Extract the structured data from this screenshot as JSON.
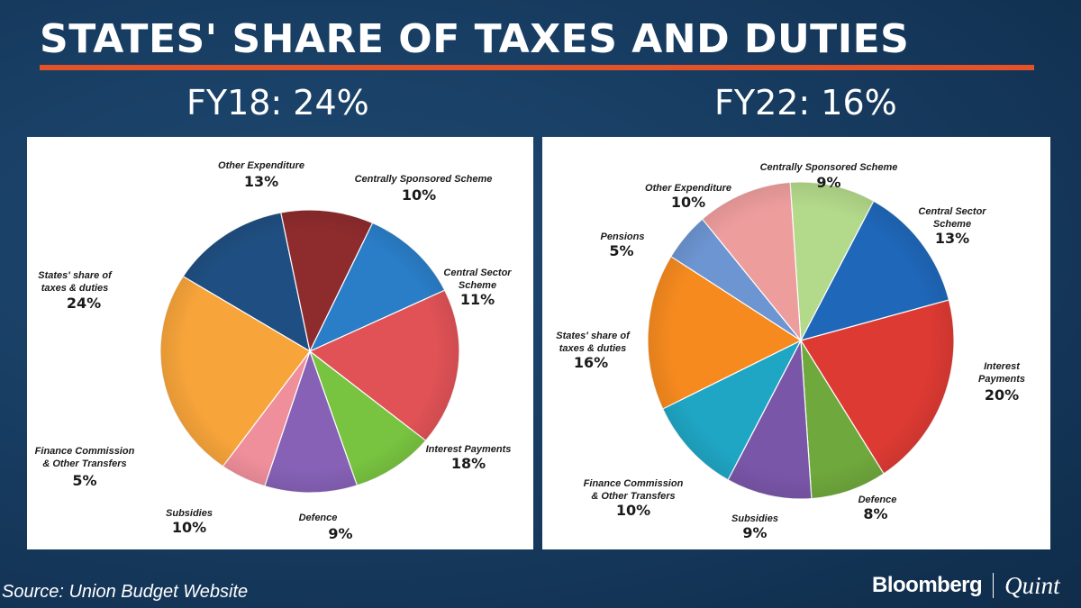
{
  "header": {
    "title": "STATES' SHARE OF TAXES AND DUTIES"
  },
  "colors": {
    "accent": "#e4522a",
    "background": "#163a5e",
    "panel": "#ffffff"
  },
  "chart_data": [
    {
      "type": "pie",
      "title": "FY18: 24%",
      "slices": [
        {
          "lines": [
            "Other Expenditure"
          ],
          "value_label": "13%",
          "value": 13,
          "color": "#1f4f82"
        },
        {
          "lines": [
            "Centrally Sponsored Scheme"
          ],
          "value_label": "10%",
          "value": 10,
          "color": "#8e2b2d"
        },
        {
          "lines": [
            "Central Sector",
            "Scheme"
          ],
          "value_label": "11%",
          "value": 11,
          "color": "#2a7ec8"
        },
        {
          "lines": [
            "Interest Payments"
          ],
          "value_label": "18%",
          "value": 18,
          "color": "#e05256"
        },
        {
          "lines": [
            "Defence"
          ],
          "value_label": "9%",
          "value": 9,
          "color": "#78c440"
        },
        {
          "lines": [
            "Subsidies"
          ],
          "value_label": "10%",
          "value": 10,
          "color": "#8661b6"
        },
        {
          "lines": [
            "Finance Commission",
            "& Other Transfers"
          ],
          "value_label": "5%",
          "value": 5,
          "color": "#f08f9c"
        },
        {
          "lines": [
            "States' share of",
            "taxes & duties"
          ],
          "value_label": "24%",
          "value": 24,
          "color": "#f7a43a"
        }
      ]
    },
    {
      "type": "pie",
      "title": "FY22: 16%",
      "slices": [
        {
          "lines": [
            "Centrally Sponsored Scheme"
          ],
          "value_label": "9%",
          "value": 9,
          "color": "#b3d98a"
        },
        {
          "lines": [
            "Central Sector",
            "Scheme"
          ],
          "value_label": "13%",
          "value": 13,
          "color": "#1f67b9"
        },
        {
          "lines": [
            "Interest",
            "Payments"
          ],
          "value_label": "20%",
          "value": 20,
          "color": "#dd3a33"
        },
        {
          "lines": [
            "Defence"
          ],
          "value_label": "8%",
          "value": 8,
          "color": "#6fa83c"
        },
        {
          "lines": [
            "Subsidies"
          ],
          "value_label": "9%",
          "value": 9,
          "color": "#7a56a9"
        },
        {
          "lines": [
            "Finance Commission",
            "& Other Transfers"
          ],
          "value_label": "10%",
          "value": 10,
          "color": "#1fa6c4"
        },
        {
          "lines": [
            "States' share of",
            "taxes & duties"
          ],
          "value_label": "16%",
          "value": 16,
          "color": "#f68a1f"
        },
        {
          "lines": [
            "Pensions"
          ],
          "value_label": "5%",
          "value": 5,
          "color": "#6d95d2"
        },
        {
          "lines": [
            "Other Expenditure"
          ],
          "value_label": "10%",
          "value": 10,
          "color": "#ee9d9d"
        }
      ]
    }
  ],
  "footer": {
    "source": "Source: Union Budget Website",
    "brand_name": "Bloomberg",
    "brand_sub": "Quint"
  }
}
